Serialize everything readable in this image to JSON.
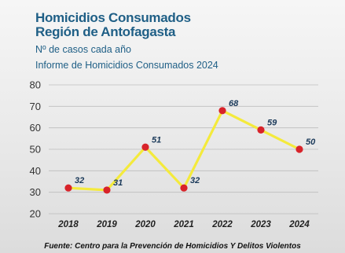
{
  "header": {
    "title_line1": "Homicidios Consumados",
    "title_line2": "Región de Antofagasta",
    "subtitle_line1": "Nº de casos cada año",
    "subtitle_line2": "Informe de Homicidios Consumados 2024"
  },
  "footer": {
    "source": "Fuente: Centro para la Prevención de Homicidios Y Delitos Violentos"
  },
  "colors": {
    "line": "#f4ea3c",
    "marker": "#d8232a",
    "title": "#1f5f86",
    "grid": "#bdbdbd"
  },
  "chart_data": {
    "type": "line",
    "title": "Homicidios Consumados Región de Antofagasta",
    "xlabel": "",
    "ylabel": "",
    "ylim": [
      20,
      80
    ],
    "yticks": [
      20,
      30,
      40,
      50,
      60,
      70,
      80
    ],
    "grid": true,
    "categories": [
      "2018",
      "2019",
      "2020",
      "2021",
      "2022",
      "2023",
      "2024"
    ],
    "series": [
      {
        "values": [
          32,
          31,
          51,
          32,
          68,
          59,
          50
        ]
      }
    ]
  }
}
